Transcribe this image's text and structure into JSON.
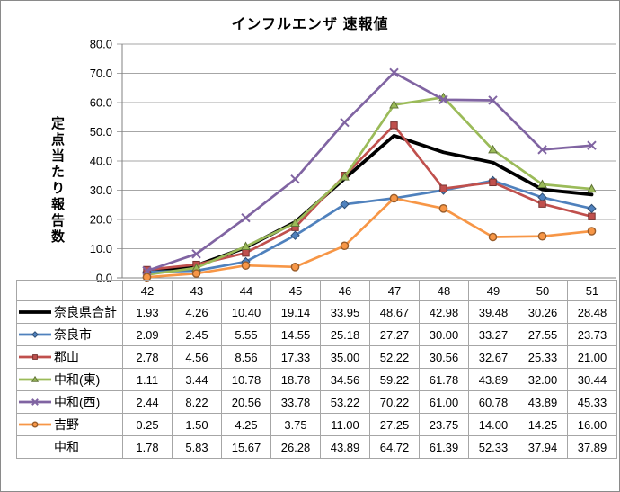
{
  "frame": {
    "background": "#ffffff",
    "border_color": "#8a8a8a"
  },
  "chart_data": {
    "type": "line",
    "title": "インフルエンザ 速報値",
    "xlabel": "",
    "ylabel": "定点当たり報告数",
    "ylim": [
      0,
      80
    ],
    "ytick_step": 10,
    "ytick_decimals": 1,
    "value_decimals": 2,
    "grid": true,
    "legend_position": "data-table-left",
    "axis_color": "#808080",
    "gridline_color": "#a6a6a6",
    "table_border_color": "#a6a6a6",
    "categories": [
      "42",
      "43",
      "44",
      "45",
      "46",
      "47",
      "48",
      "49",
      "50",
      "51"
    ],
    "series": [
      {
        "name": "奈良県合計",
        "color": "#000000",
        "marker": "none",
        "line_width": 3.8,
        "plotted": true,
        "values": [
          1.93,
          4.26,
          10.4,
          19.14,
          33.95,
          48.67,
          42.98,
          39.48,
          30.26,
          28.48
        ]
      },
      {
        "name": "奈良市",
        "color": "#4f81bd",
        "marker": "diamond",
        "line_width": 2.7,
        "plotted": true,
        "values": [
          2.09,
          2.45,
          5.55,
          14.55,
          25.18,
          27.27,
          30.0,
          33.27,
          27.55,
          23.73
        ]
      },
      {
        "name": "郡山",
        "color": "#c0504d",
        "marker": "square",
        "line_width": 2.7,
        "plotted": true,
        "values": [
          2.78,
          4.56,
          8.56,
          17.33,
          35.0,
          52.22,
          30.56,
          32.67,
          25.33,
          21.0
        ]
      },
      {
        "name": "中和(東)",
        "color": "#9bbb59",
        "marker": "triangle",
        "line_width": 2.7,
        "plotted": true,
        "values": [
          1.11,
          3.44,
          10.78,
          18.78,
          34.56,
          59.22,
          61.78,
          43.89,
          32.0,
          30.44
        ]
      },
      {
        "name": "中和(西)",
        "color": "#8064a2",
        "marker": "x",
        "line_width": 2.7,
        "plotted": true,
        "values": [
          2.44,
          8.22,
          20.56,
          33.78,
          53.22,
          70.22,
          61.0,
          60.78,
          43.89,
          45.33
        ]
      },
      {
        "name": "吉野",
        "color": "#f79646",
        "marker": "circle",
        "line_width": 2.7,
        "plotted": true,
        "values": [
          0.25,
          1.5,
          4.25,
          3.75,
          11.0,
          27.25,
          23.75,
          14.0,
          14.25,
          16.0
        ]
      },
      {
        "name": "中和",
        "color": "",
        "marker": "none",
        "line_width": 0,
        "plotted": false,
        "values": [
          1.78,
          5.83,
          15.67,
          26.28,
          43.89,
          64.72,
          61.39,
          52.33,
          37.94,
          37.89
        ]
      }
    ]
  }
}
